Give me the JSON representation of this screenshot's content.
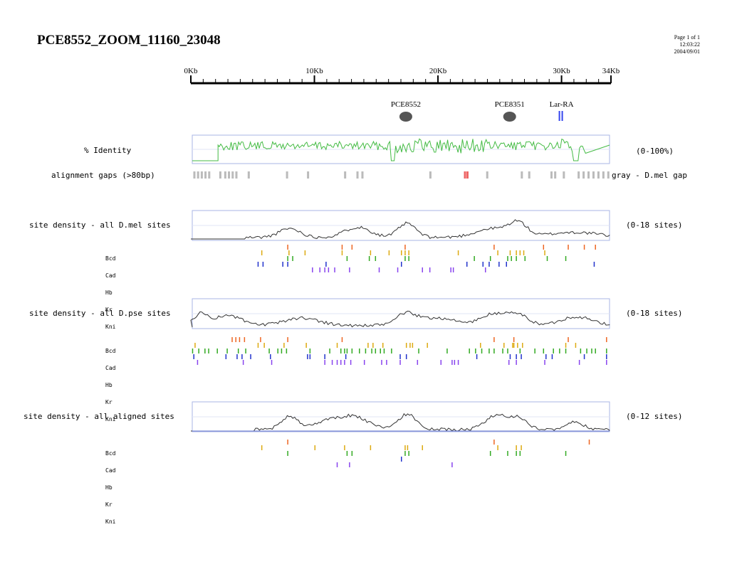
{
  "header": {
    "title": "PCE8552_ZOOM_11160_23048",
    "page": "Page 1 of 1",
    "time": "12:03:22",
    "date": "2004/09/01"
  },
  "ruler": {
    "ticks": [
      {
        "label": "0Kb",
        "kb": 0
      },
      {
        "label": "10Kb",
        "kb": 10
      },
      {
        "label": "20Kb",
        "kb": 20
      },
      {
        "label": "30Kb",
        "kb": 30
      },
      {
        "label": "34Kb",
        "kb": 34
      }
    ],
    "max_kb": 34
  },
  "features": [
    {
      "label": "PCE8552",
      "kb": 17.4,
      "shape": "ellipse",
      "color": "#555555"
    },
    {
      "label": "PCE8351",
      "kb": 25.8,
      "shape": "ellipse",
      "color": "#555555"
    },
    {
      "label": "Lar-RA",
      "kb": 30.0,
      "shape": "box",
      "color": "#3344ee"
    }
  ],
  "tracks": {
    "identity": {
      "label": "% Identity",
      "range": "(0-100%)",
      "color": "#44bb44"
    },
    "gaps": {
      "label": "alignment gaps (>80bp)",
      "legend": "gray - D.mel gap",
      "gray": "#bbbbbb",
      "red": "#ee6666"
    },
    "dmel": {
      "label": "site density - all D.mel sites",
      "range": "(0-18 sites)"
    },
    "dpse": {
      "label": "site density - all D.pse sites",
      "range": "(0-18 sites)"
    },
    "aligned": {
      "label": "site density - all aligned sites",
      "range": "(0-12 sites)"
    }
  },
  "factors": [
    {
      "name": "Bcd",
      "color": "#ee6622"
    },
    {
      "name": "Cad",
      "color": "#ddaa11"
    },
    {
      "name": "Hb",
      "color": "#33aa22"
    },
    {
      "name": "Kr",
      "color": "#2233cc"
    },
    {
      "name": "Kni",
      "color": "#8844ee"
    }
  ],
  "chart_data": {
    "type": "line",
    "x_unit": "Kb",
    "xlim": [
      0,
      34
    ],
    "gap_positions_kb": [
      0.2,
      0.5,
      0.8,
      1.1,
      1.4,
      2.3,
      2.7,
      3.0,
      3.3,
      3.6,
      4.6,
      7.7,
      9.4,
      12.4,
      13.4,
      13.8,
      19.3,
      22.1,
      22.3,
      23.9,
      26.7,
      27.3,
      29.1,
      29.4,
      30.1,
      31.3,
      31.7,
      32.1,
      32.5,
      32.9,
      33.3,
      33.7
    ],
    "gap_red_kb": [
      22.1,
      22.3
    ],
    "site_marks": {
      "dmel": {
        "Bcd": [
          7.8,
          12.2,
          13.0,
          17.3,
          24.5,
          28.5,
          30.5,
          31.8,
          32.7
        ],
        "Cad": [
          5.7,
          7.9,
          9.2,
          12.2,
          14.5,
          16.0,
          17.0,
          17.3,
          17.6,
          21.6,
          24.8,
          25.8,
          26.3,
          26.6,
          26.9,
          28.6
        ],
        "Hb": [
          7.8,
          8.2,
          12.6,
          14.4,
          14.9,
          17.3,
          17.6,
          22.9,
          24.2,
          25.6,
          25.9,
          26.3,
          27.0,
          28.8,
          30.3
        ],
        "Kr": [
          5.4,
          5.8,
          7.4,
          7.8,
          10.9,
          17.0,
          22.3,
          23.6,
          24.1,
          24.9,
          25.5,
          32.6
        ],
        "Kni": [
          9.8,
          10.4,
          10.8,
          11.1,
          11.6,
          12.8,
          15.2,
          16.7,
          18.7,
          19.3,
          21.0,
          21.2,
          23.8
        ]
      },
      "dpse": {
        "Bcd": [
          3.3,
          3.6,
          3.9,
          4.3,
          5.6,
          7.8,
          12.2,
          24.5,
          26.1,
          30.5,
          33.6
        ],
        "Cad": [
          0.3,
          5.4,
          5.9,
          7.5,
          9.3,
          11.8,
          14.3,
          14.7,
          15.5,
          17.4,
          17.7,
          17.9,
          19.1,
          23.4,
          25.3,
          26.0,
          26.1,
          26.4,
          26.8,
          30.3,
          31.1
        ],
        "Hb": [
          0.1,
          0.6,
          1.1,
          1.4,
          2.1,
          2.9,
          3.8,
          4.4,
          6.3,
          7.0,
          7.3,
          7.7,
          9.6,
          11.2,
          12.1,
          12.4,
          12.6,
          13.0,
          13.6,
          14.1,
          14.6,
          14.9,
          15.3,
          15.6,
          16.2,
          18.4,
          20.7,
          22.5,
          23.0,
          23.5,
          24.1,
          24.5,
          25.2,
          25.6,
          26.6,
          27.8,
          28.5,
          29.3,
          29.8,
          30.3,
          31.5,
          32.0,
          32.4,
          32.7,
          33.6
        ],
        "Kr": [
          0.2,
          2.8,
          3.7,
          4.1,
          4.8,
          6.4,
          9.4,
          9.6,
          10.8,
          12.5,
          16.9,
          17.4,
          23.1,
          25.8,
          26.3,
          26.7,
          28.7,
          29.2,
          31.8,
          33.6
        ],
        "Kni": [
          0.5,
          4.2,
          6.5,
          10.8,
          11.4,
          11.8,
          12.1,
          12.4,
          12.9,
          14.0,
          15.4,
          15.8,
          16.9,
          18.3,
          20.2,
          21.1,
          21.3,
          21.6,
          25.7,
          26.3,
          28.6,
          31.4,
          33.6
        ]
      },
      "aligned": {
        "Bcd": [
          7.8,
          24.5,
          32.2
        ],
        "Cad": [
          5.7,
          10.0,
          12.4,
          14.5,
          17.3,
          17.5,
          18.7,
          24.8,
          26.3,
          26.7
        ],
        "Hb": [
          7.8,
          12.6,
          13.0,
          17.3,
          17.6,
          24.2,
          25.6,
          26.3,
          26.6,
          30.3
        ],
        "Kr": [
          17.0
        ],
        "Kni": [
          11.8,
          12.8,
          21.1
        ]
      }
    }
  }
}
